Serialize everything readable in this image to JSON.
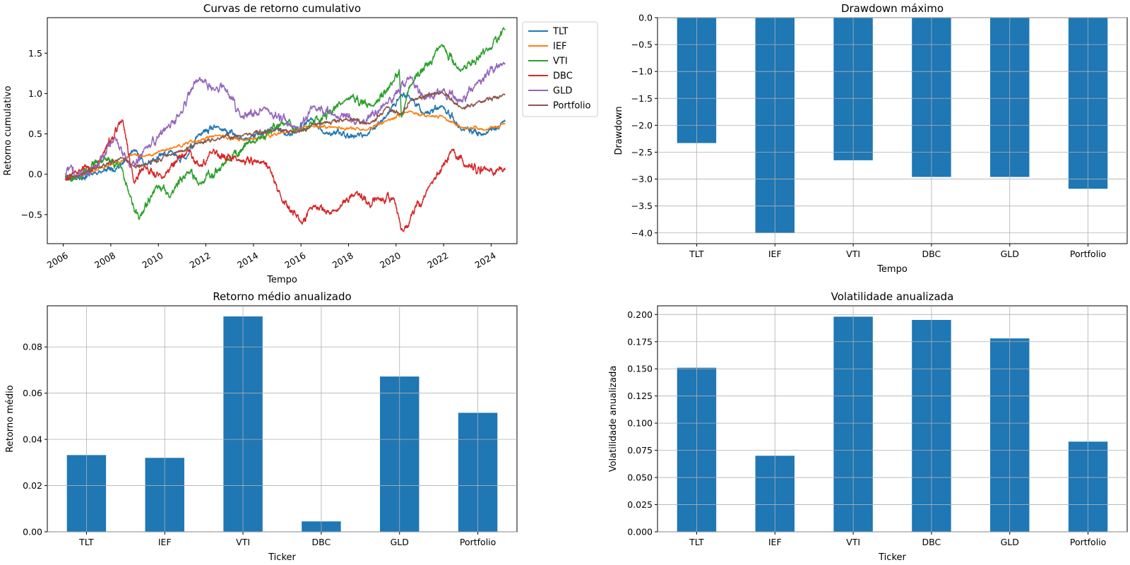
{
  "chart_data": [
    {
      "type": "line",
      "title": "Curvas de retorno cumulativo",
      "xlabel": "Tempo",
      "ylabel": "Retorno cumulativo",
      "xlim": [
        "2005-05-01",
        "2025-02-01"
      ],
      "ylim": [
        -0.86,
        1.94
      ],
      "yticks": [
        -0.5,
        0.0,
        0.5,
        1.0,
        1.5
      ],
      "ytick_labels": [
        "−0.5",
        "0.0",
        "0.5",
        "1.0",
        "1.5"
      ],
      "xticks": [
        "2006",
        "2008",
        "2010",
        "2012",
        "2014",
        "2016",
        "2018",
        "2020",
        "2022",
        "2024"
      ],
      "legend_placement": "outside-upper-right",
      "grid": false,
      "series": [
        {
          "name": "TLT",
          "color": "#1f77b4",
          "vol": 0.012,
          "seed": 11,
          "points": [
            [
              "2006-02-01",
              -0.03
            ],
            [
              "2006-07-01",
              -0.05
            ],
            [
              "2007-06-01",
              0.02
            ],
            [
              "2008-06-01",
              0.1
            ],
            [
              "2008-12-20",
              0.3
            ],
            [
              "2009-06-01",
              0.12
            ],
            [
              "2010-08-01",
              0.28
            ],
            [
              "2011-03-01",
              0.18
            ],
            [
              "2011-09-01",
              0.48
            ],
            [
              "2012-07-01",
              0.58
            ],
            [
              "2013-08-01",
              0.42
            ],
            [
              "2014-12-01",
              0.58
            ],
            [
              "2015-06-01",
              0.48
            ],
            [
              "2016-07-01",
              0.68
            ],
            [
              "2016-12-01",
              0.52
            ],
            [
              "2018-10-01",
              0.48
            ],
            [
              "2019-08-01",
              0.72
            ],
            [
              "2020-03-10",
              0.98
            ],
            [
              "2020-08-01",
              0.95
            ],
            [
              "2021-03-01",
              0.75
            ],
            [
              "2021-12-01",
              0.85
            ],
            [
              "2022-10-01",
              0.55
            ],
            [
              "2023-10-01",
              0.5
            ],
            [
              "2024-08-01",
              0.65
            ]
          ]
        },
        {
          "name": "IEF",
          "color": "#ff7f0e",
          "vol": 0.006,
          "seed": 23,
          "points": [
            [
              "2006-02-01",
              -0.02
            ],
            [
              "2006-07-01",
              -0.03
            ],
            [
              "2007-06-01",
              0.05
            ],
            [
              "2008-12-20",
              0.25
            ],
            [
              "2009-06-01",
              0.22
            ],
            [
              "2010-08-01",
              0.33
            ],
            [
              "2011-09-01",
              0.42
            ],
            [
              "2012-07-01",
              0.48
            ],
            [
              "2013-08-01",
              0.42
            ],
            [
              "2015-06-01",
              0.52
            ],
            [
              "2016-07-01",
              0.6
            ],
            [
              "2017-06-01",
              0.58
            ],
            [
              "2018-10-01",
              0.55
            ],
            [
              "2019-08-01",
              0.66
            ],
            [
              "2020-08-01",
              0.78
            ],
            [
              "2021-06-01",
              0.72
            ],
            [
              "2021-12-01",
              0.72
            ],
            [
              "2022-10-01",
              0.58
            ],
            [
              "2023-10-01",
              0.55
            ],
            [
              "2024-08-01",
              0.62
            ]
          ]
        },
        {
          "name": "VTI",
          "color": "#2ca02c",
          "vol": 0.016,
          "seed": 37,
          "points": [
            [
              "2006-02-01",
              -0.02
            ],
            [
              "2006-07-01",
              -0.06
            ],
            [
              "2007-10-01",
              0.2
            ],
            [
              "2008-06-01",
              0.1
            ],
            [
              "2008-10-15",
              -0.25
            ],
            [
              "2009-03-09",
              -0.56
            ],
            [
              "2009-12-01",
              -0.15
            ],
            [
              "2010-07-01",
              -0.28
            ],
            [
              "2011-04-01",
              0.05
            ],
            [
              "2011-10-01",
              -0.1
            ],
            [
              "2012-12-01",
              0.15
            ],
            [
              "2013-12-01",
              0.4
            ],
            [
              "2015-06-01",
              0.65
            ],
            [
              "2016-02-01",
              0.52
            ],
            [
              "2017-12-01",
              0.95
            ],
            [
              "2018-12-24",
              0.85
            ],
            [
              "2019-12-01",
              1.15
            ],
            [
              "2020-02-19",
              1.3
            ],
            [
              "2020-03-23",
              0.7
            ],
            [
              "2020-08-01",
              1.1
            ],
            [
              "2021-12-01",
              1.62
            ],
            [
              "2022-10-01",
              1.28
            ],
            [
              "2023-12-01",
              1.55
            ],
            [
              "2024-08-01",
              1.8
            ]
          ]
        },
        {
          "name": "DBC",
          "color": "#d62728",
          "vol": 0.015,
          "seed": 53,
          "points": [
            [
              "2006-02-01",
              -0.05
            ],
            [
              "2006-07-01",
              0.05
            ],
            [
              "2007-06-01",
              0.1
            ],
            [
              "2008-07-01",
              0.68
            ],
            [
              "2008-12-20",
              -0.1
            ],
            [
              "2009-06-01",
              0.1
            ],
            [
              "2010-03-01",
              -0.05
            ],
            [
              "2011-04-01",
              0.3
            ],
            [
              "2011-10-01",
              0.1
            ],
            [
              "2012-03-01",
              0.28
            ],
            [
              "2013-06-01",
              0.18
            ],
            [
              "2014-06-01",
              0.15
            ],
            [
              "2014-09-01",
              0.08
            ],
            [
              "2015-03-01",
              -0.3
            ],
            [
              "2016-01-20",
              -0.62
            ],
            [
              "2016-06-01",
              -0.4
            ],
            [
              "2017-06-01",
              -0.45
            ],
            [
              "2018-05-01",
              -0.22
            ],
            [
              "2018-12-01",
              -0.4
            ],
            [
              "2019-04-01",
              -0.28
            ],
            [
              "2019-12-01",
              -0.32
            ],
            [
              "2020-04-20",
              -0.72
            ],
            [
              "2021-06-01",
              -0.15
            ],
            [
              "2022-06-01",
              0.3
            ],
            [
              "2022-12-01",
              0.1
            ],
            [
              "2023-12-01",
              0.05
            ],
            [
              "2024-08-01",
              0.05
            ]
          ]
        },
        {
          "name": "GLD",
          "color": "#9467bd",
          "vol": 0.016,
          "seed": 71,
          "points": [
            [
              "2006-02-01",
              0.0
            ],
            [
              "2006-05-01",
              0.1
            ],
            [
              "2006-07-01",
              -0.02
            ],
            [
              "2007-06-01",
              0.1
            ],
            [
              "2008-03-01",
              0.45
            ],
            [
              "2008-10-24",
              0.1
            ],
            [
              "2009-06-01",
              0.3
            ],
            [
              "2010-06-01",
              0.58
            ],
            [
              "2010-12-01",
              0.75
            ],
            [
              "2011-09-01",
              1.18
            ],
            [
              "2012-06-01",
              1.05
            ],
            [
              "2012-10-01",
              1.1
            ],
            [
              "2013-06-28",
              0.7
            ],
            [
              "2014-06-01",
              0.82
            ],
            [
              "2015-12-01",
              0.55
            ],
            [
              "2016-07-01",
              0.82
            ],
            [
              "2017-06-01",
              0.72
            ],
            [
              "2018-08-01",
              0.65
            ],
            [
              "2019-08-01",
              0.88
            ],
            [
              "2020-08-06",
              1.22
            ],
            [
              "2021-03-01",
              0.95
            ],
            [
              "2021-12-01",
              1.05
            ],
            [
              "2022-10-01",
              0.9
            ],
            [
              "2023-05-01",
              1.1
            ],
            [
              "2024-08-01",
              1.38
            ]
          ]
        },
        {
          "name": "Portfolio",
          "color": "#8c564b",
          "vol": 0.008,
          "seed": 89,
          "points": [
            [
              "2006-02-01",
              -0.02
            ],
            [
              "2006-07-01",
              -0.03
            ],
            [
              "2007-06-01",
              0.08
            ],
            [
              "2008-07-01",
              0.2
            ],
            [
              "2008-12-01",
              0.1
            ],
            [
              "2009-06-01",
              0.12
            ],
            [
              "2010-08-01",
              0.25
            ],
            [
              "2011-09-01",
              0.38
            ],
            [
              "2012-07-01",
              0.45
            ],
            [
              "2013-08-01",
              0.48
            ],
            [
              "2014-12-01",
              0.55
            ],
            [
              "2015-12-01",
              0.52
            ],
            [
              "2016-07-01",
              0.62
            ],
            [
              "2017-12-01",
              0.68
            ],
            [
              "2018-12-01",
              0.62
            ],
            [
              "2019-08-01",
              0.82
            ],
            [
              "2020-03-20",
              0.75
            ],
            [
              "2020-08-01",
              0.92
            ],
            [
              "2021-12-01",
              1.02
            ],
            [
              "2022-10-01",
              0.82
            ],
            [
              "2023-06-01",
              0.88
            ],
            [
              "2024-08-01",
              0.98
            ]
          ]
        }
      ]
    },
    {
      "type": "bar",
      "title": "Drawdown máximo",
      "xlabel": "Tempo",
      "ylabel": "Drawdown",
      "categories": [
        "TLT",
        "IEF",
        "VTI",
        "DBC",
        "GLD",
        "Portfolio"
      ],
      "values": [
        -2.33,
        -4.0,
        -2.65,
        -2.96,
        -2.96,
        -3.18
      ],
      "ylim": [
        -4.2,
        0.0
      ],
      "yticks": [
        -4.0,
        -3.5,
        -3.0,
        -2.5,
        -2.0,
        -1.5,
        -1.0,
        -0.5,
        0.0
      ],
      "ytick_labels": [
        "−4.0",
        "−3.5",
        "−3.0",
        "−2.5",
        "−2.0",
        "−1.5",
        "−1.0",
        "−0.5",
        "0.0"
      ],
      "color": "#1f77b4",
      "grid": true
    },
    {
      "type": "bar",
      "title": "Retorno médio anualizado",
      "xlabel": "Ticker",
      "ylabel": "Retorno médio",
      "categories": [
        "TLT",
        "IEF",
        "VTI",
        "DBC",
        "GLD",
        "Portfolio"
      ],
      "values": [
        0.0332,
        0.032,
        0.0932,
        0.0045,
        0.0672,
        0.0515
      ],
      "ylim": [
        0.0,
        0.0978
      ],
      "yticks": [
        0.0,
        0.02,
        0.04,
        0.06,
        0.08
      ],
      "ytick_labels": [
        "0.00",
        "0.02",
        "0.04",
        "0.06",
        "0.08"
      ],
      "color": "#1f77b4",
      "grid": true
    },
    {
      "type": "bar",
      "title": "Volatilidade anualizada",
      "xlabel": "Ticker",
      "ylabel": "Volatilidade anualizada",
      "categories": [
        "TLT",
        "IEF",
        "VTI",
        "DBC",
        "GLD",
        "Portfolio"
      ],
      "values": [
        0.151,
        0.07,
        0.198,
        0.195,
        0.178,
        0.083
      ],
      "ylim": [
        0.0,
        0.208
      ],
      "yticks": [
        0.0,
        0.025,
        0.05,
        0.075,
        0.1,
        0.125,
        0.15,
        0.175,
        0.2
      ],
      "ytick_labels": [
        "0.000",
        "0.025",
        "0.050",
        "0.075",
        "0.100",
        "0.125",
        "0.150",
        "0.175",
        "0.200"
      ],
      "color": "#1f77b4",
      "grid": true
    }
  ]
}
